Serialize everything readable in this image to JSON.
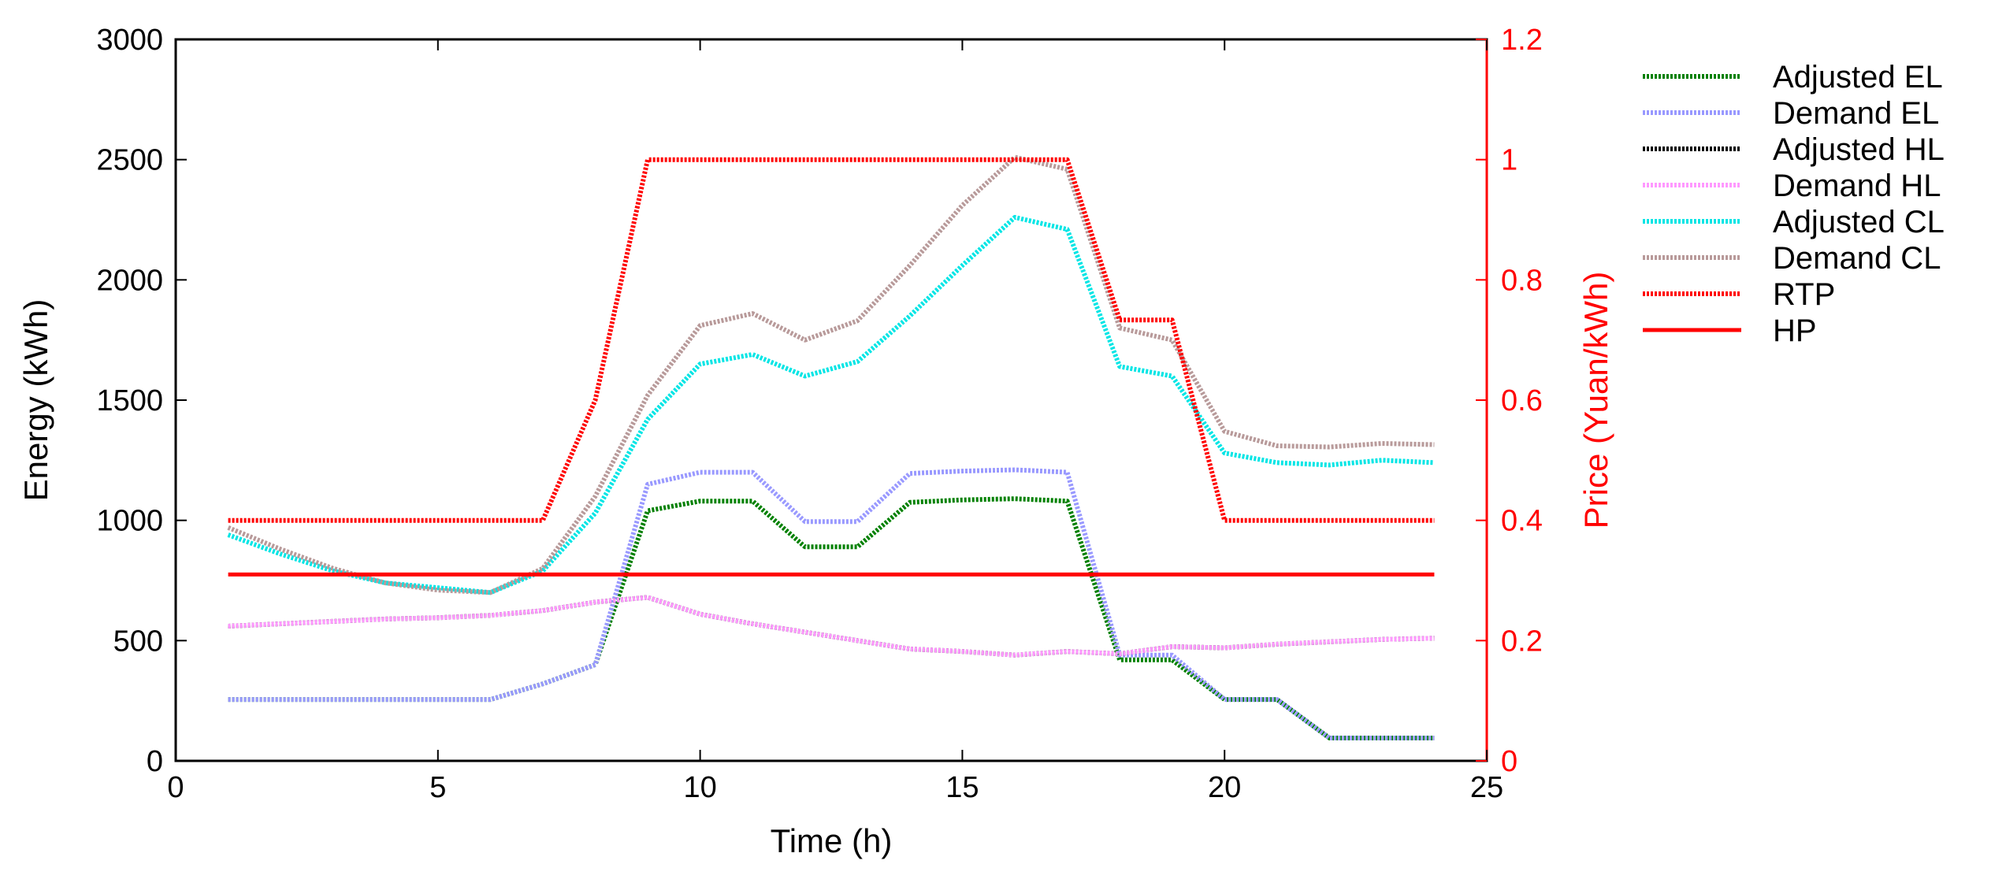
{
  "chart_data": {
    "type": "line",
    "x": [
      1,
      2,
      3,
      4,
      5,
      6,
      7,
      8,
      9,
      10,
      11,
      12,
      13,
      14,
      15,
      16,
      17,
      18,
      19,
      20,
      21,
      22,
      23,
      24
    ],
    "xlabel": "Time (h)",
    "ylabel": "Energy (kWh)",
    "ylabel_right": "Price (Yuan/kWh)",
    "xlim": [
      0,
      25
    ],
    "ylim": [
      0,
      3000
    ],
    "ylim_right": [
      0,
      1.2
    ],
    "x_ticks": [
      "0",
      "5",
      "10",
      "15",
      "20",
      "25"
    ],
    "y_ticks": [
      "0",
      "500",
      "1000",
      "1500",
      "2000",
      "2500",
      "3000"
    ],
    "y_ticks_right": [
      "0",
      "0.2",
      "0.4",
      "0.6",
      "0.8",
      "1",
      "1.2"
    ],
    "legend_position": "outside-right",
    "series": [
      {
        "name": "Adjusted EL",
        "axis": "left",
        "color": "#008000",
        "style": "dotted",
        "values": [
          255,
          255,
          255,
          255,
          255,
          255,
          320,
          400,
          1040,
          1080,
          1080,
          890,
          890,
          1075,
          1085,
          1090,
          1080,
          420,
          420,
          255,
          255,
          95,
          95,
          95
        ]
      },
      {
        "name": "Demand EL",
        "axis": "left",
        "color": "#9999ff",
        "style": "dotted",
        "values": [
          255,
          255,
          255,
          255,
          255,
          255,
          320,
          400,
          1150,
          1200,
          1200,
          995,
          995,
          1195,
          1205,
          1210,
          1200,
          440,
          440,
          255,
          255,
          95,
          95,
          95
        ]
      },
      {
        "name": "Adjusted HL",
        "axis": "left",
        "color": "#000000",
        "style": "dotted",
        "values": [
          560,
          570,
          580,
          590,
          595,
          605,
          625,
          660,
          680,
          610,
          570,
          535,
          500,
          465,
          455,
          440,
          455,
          445,
          475,
          470,
          485,
          495,
          505,
          510
        ]
      },
      {
        "name": "Demand HL",
        "axis": "left",
        "color": "#ff99ff",
        "style": "dotted",
        "values": [
          560,
          570,
          580,
          590,
          595,
          605,
          625,
          660,
          680,
          610,
          570,
          535,
          500,
          465,
          455,
          440,
          455,
          445,
          475,
          470,
          485,
          495,
          505,
          510
        ]
      },
      {
        "name": "Adjusted CL",
        "axis": "left",
        "color": "#00e5e5",
        "style": "dotted",
        "values": [
          940,
          860,
          790,
          740,
          720,
          700,
          790,
          1030,
          1420,
          1650,
          1690,
          1600,
          1660,
          1850,
          2060,
          2260,
          2210,
          1640,
          1600,
          1280,
          1240,
          1230,
          1250,
          1240
        ]
      },
      {
        "name": "Demand CL",
        "axis": "left",
        "color": "#b89a9a",
        "style": "dotted",
        "values": [
          970,
          880,
          800,
          740,
          710,
          700,
          800,
          1100,
          1520,
          1810,
          1860,
          1750,
          1830,
          2060,
          2310,
          2510,
          2460,
          1800,
          1750,
          1370,
          1310,
          1305,
          1320,
          1315
        ]
      },
      {
        "name": "RTP",
        "axis": "right",
        "color": "#ff0000",
        "style": "dotted",
        "step": true,
        "values": [
          0.4,
          0.4,
          0.4,
          0.4,
          0.4,
          0.4,
          0.4,
          0.6,
          1,
          1,
          1,
          1,
          1,
          1,
          1,
          1,
          1,
          0.7333,
          0.7333,
          0.4,
          0.4,
          0.4,
          0.4,
          0.4
        ]
      },
      {
        "name": "HP",
        "axis": "right",
        "color": "#ff0000",
        "style": "solid",
        "values": [
          0.31,
          0.31,
          0.31,
          0.31,
          0.31,
          0.31,
          0.31,
          0.31,
          0.31,
          0.31,
          0.31,
          0.31,
          0.31,
          0.31,
          0.31,
          0.31,
          0.31,
          0.31,
          0.31,
          0.31,
          0.31,
          0.31,
          0.31,
          0.31
        ]
      }
    ]
  }
}
